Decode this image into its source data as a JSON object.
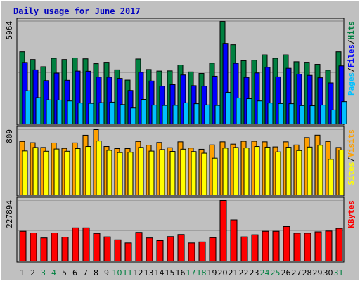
{
  "chart_data": {
    "type": "bar",
    "title": "Daily usage for June 2017",
    "days": [
      "1",
      "2",
      "3",
      "4",
      "5",
      "6",
      "7",
      "8",
      "9",
      "10",
      "11",
      "12",
      "13",
      "14",
      "15",
      "16",
      "17",
      "18",
      "19",
      "20",
      "21",
      "22",
      "23",
      "24",
      "25",
      "26",
      "27",
      "28",
      "29",
      "30",
      "31"
    ],
    "weekend_days": [
      "3",
      "4",
      "10",
      "11",
      "17",
      "18",
      "24",
      "25",
      "31"
    ],
    "colors": {
      "background": "#c0c0c0",
      "title": "#0000c0",
      "hits": "#008040",
      "files": "#0000ff",
      "pages": "#00c0ff",
      "visits": "#ffa000",
      "sites": "#ffff00",
      "kbytes": "#ff0000",
      "weekday_label": "#000000",
      "weekend_label": "#008040"
    },
    "panels": [
      {
        "id": "hits-files-pages",
        "max_label": "5964",
        "ylim": [
          0,
          5964
        ],
        "legend": [
          {
            "text": "Hits",
            "color": "#008040"
          },
          {
            "text": "/",
            "color": "#000000"
          },
          {
            "text": "Files",
            "color": "#0000ff"
          },
          {
            "text": "/",
            "color": "#000000"
          },
          {
            "text": "Pages",
            "color": "#00c0ff"
          }
        ],
        "series": [
          {
            "name": "Hits",
            "color": "#008040",
            "values": [
              4200,
              3750,
              3330,
              3820,
              3750,
              3840,
              3790,
              3510,
              3590,
              3150,
              2550,
              3780,
              3170,
              3080,
              3090,
              3430,
              3030,
              2940,
              3540,
              5960,
              4610,
              3680,
              3710,
              4020,
              3820,
              4020,
              3620,
              3590,
              3470,
              3130,
              4200
            ]
          },
          {
            "name": "Files",
            "color": "#0000ff",
            "values": [
              3580,
              3150,
              2520,
              2960,
              2540,
              3080,
              3070,
              2730,
              2720,
              2650,
              1950,
              3010,
              2500,
              2200,
              2290,
              2850,
              2230,
              2200,
              2780,
              4690,
              3530,
              2710,
              2970,
              3300,
              2740,
              3240,
              2900,
              2830,
              2690,
              2390,
              3380
            ]
          },
          {
            "name": "Pages",
            "color": "#00c0ff",
            "values": [
              1930,
              1530,
              1400,
              1390,
              1340,
              1220,
              1200,
              1240,
              1270,
              1130,
              930,
              1430,
              1100,
              1080,
              1090,
              1230,
              1180,
              1110,
              1080,
              1840,
              1510,
              1470,
              1340,
              1220,
              1190,
              1180,
              1070,
              1060,
              1100,
              820,
              1300
            ]
          }
        ]
      },
      {
        "id": "visits-sites",
        "max_label": "809",
        "ylim": [
          0,
          809
        ],
        "legend": [
          {
            "text": "Visits",
            "color": "#ffa000"
          },
          {
            "text": "/",
            "color": "#000000"
          },
          {
            "text": "Sites",
            "color": "#ffff00"
          }
        ],
        "series": [
          {
            "name": "Visits",
            "color": "#ffa000",
            "values": [
              663,
              647,
              588,
              644,
              577,
              645,
              740,
              809,
              600,
              574,
              574,
              663,
              617,
              650,
              585,
              658,
              581,
              566,
              620,
              658,
              629,
              665,
              665,
              658,
              595,
              658,
              619,
              710,
              741,
              663,
              588
            ]
          },
          {
            "name": "Sites",
            "color": "#ffff00",
            "values": [
              545,
              588,
              541,
              569,
              541,
              574,
              600,
              669,
              553,
              525,
              529,
              589,
              543,
              562,
              539,
              567,
              537,
              517,
              455,
              580,
              588,
              582,
              600,
              592,
              533,
              591,
              550,
              593,
              616,
              441,
              557
            ]
          }
        ]
      },
      {
        "id": "kbytes",
        "max_label": "227894",
        "ylim": [
          0,
          227894
        ],
        "legend": [
          {
            "text": "KBytes",
            "color": "#ff0000"
          }
        ],
        "series": [
          {
            "name": "KBytes",
            "color": "#ff0000",
            "values": [
              112000,
              106000,
              87000,
              106000,
              90000,
              125000,
              125000,
              104000,
              91000,
              80000,
              68000,
              108000,
              87000,
              77000,
              92000,
              100000,
              68000,
              72000,
              88000,
              227894,
              155000,
              91000,
              99000,
              112000,
              112000,
              130000,
              105000,
              105000,
              110000,
              113000,
              123000
            ]
          }
        ]
      }
    ]
  }
}
